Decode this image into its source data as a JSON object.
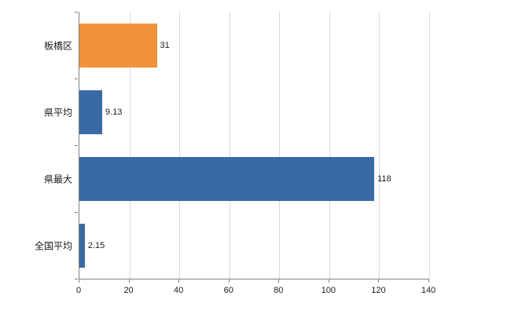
{
  "chart_data": {
    "type": "bar",
    "orientation": "horizontal",
    "title": "",
    "xlabel": "",
    "ylabel": "",
    "categories": [
      "板橋区",
      "県平均",
      "県最大",
      "全国平均"
    ],
    "values": [
      31,
      9.13,
      118,
      2.15
    ],
    "value_labels": [
      "31",
      "9.13",
      "118",
      "2.15"
    ],
    "series": [
      {
        "name": "values",
        "values": [
          31,
          9.13,
          118,
          2.15
        ],
        "colors": [
          "#f0913c",
          "#3a6aa3",
          "#3a6aa3",
          "#3a6aa3"
        ]
      }
    ],
    "xlim": [
      0,
      140
    ],
    "x_ticks": [
      0,
      20,
      40,
      60,
      80,
      100,
      120,
      140
    ],
    "grid": true,
    "legend": false
  },
  "colors": {
    "orange_bar": "#f0913c",
    "blue_bar": "#3a6aa3",
    "gridline": "#d9d9d9",
    "axis": "#7f7f7f",
    "text": "#1a1a1a",
    "background": "#ffffff"
  }
}
